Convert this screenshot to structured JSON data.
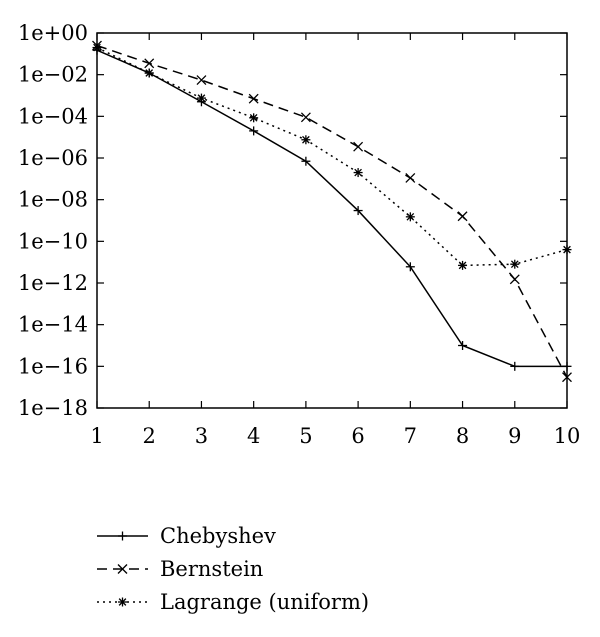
{
  "chart_data": {
    "type": "line",
    "title": "",
    "xlabel": "",
    "ylabel": "",
    "yscale": "log",
    "x": [
      1,
      2,
      3,
      4,
      5,
      6,
      7,
      8,
      9,
      10
    ],
    "xlim": [
      1,
      10
    ],
    "ylim_exponent": [
      -18,
      0
    ],
    "x_ticks": [
      "1",
      "2",
      "3",
      "4",
      "5",
      "6",
      "7",
      "8",
      "9",
      "10"
    ],
    "y_ticks": [
      {
        "exp": 0,
        "label": "1e+00"
      },
      {
        "exp": -2,
        "label": "1e−02"
      },
      {
        "exp": -4,
        "label": "1e−04"
      },
      {
        "exp": -6,
        "label": "1e−06"
      },
      {
        "exp": -8,
        "label": "1e−08"
      },
      {
        "exp": -10,
        "label": "1e−10"
      },
      {
        "exp": -12,
        "label": "1e−12"
      },
      {
        "exp": -14,
        "label": "1e−14"
      },
      {
        "exp": -16,
        "label": "1e−16"
      },
      {
        "exp": -18,
        "label": "1e−18"
      }
    ],
    "grid": false,
    "legend_position": "below",
    "series": [
      {
        "name": "Chebyshev",
        "style": "solid",
        "marker": "plus",
        "color": "#000000",
        "values": [
          0.15,
          0.012,
          0.0005,
          2e-05,
          7e-07,
          3e-09,
          6e-12,
          1e-15,
          1e-16,
          1e-16
        ]
      },
      {
        "name": "Bernstein",
        "style": "dashed",
        "marker": "cross",
        "color": "#000000",
        "values": [
          0.25,
          0.035,
          0.0055,
          0.0007,
          9e-05,
          3.5e-06,
          1.1e-07,
          1.6e-09,
          1.5e-12,
          3e-17
        ]
      },
      {
        "name": "Lagrange (uniform)",
        "style": "dotted",
        "marker": "asterisk",
        "color": "#000000",
        "values": [
          0.2,
          0.012,
          0.00075,
          8.5e-05,
          7.5e-06,
          2e-07,
          1.5e-09,
          7e-12,
          8e-12,
          4e-11
        ]
      }
    ]
  }
}
